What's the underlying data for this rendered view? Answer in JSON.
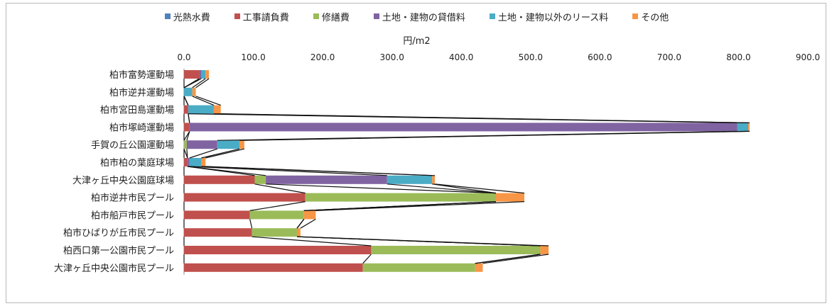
{
  "chart_data": {
    "type": "bar",
    "orientation": "horizontal",
    "stacked": true,
    "unit": "円/m2",
    "xlim": [
      0,
      900
    ],
    "xticks": [
      "0.0",
      "100.0",
      "200.0",
      "300.0",
      "400.0",
      "500.0",
      "600.0",
      "700.0",
      "800.0",
      "900.0"
    ],
    "categories": [
      "柏市富勢運動場",
      "柏市逆井運動場",
      "柏市宮田島運動場",
      "柏市塚崎運動場",
      "手賀の丘公園運動場",
      "柏市柏の葉庭球場",
      "大津ヶ丘中央公園庭球場",
      "柏市逆井市民プール",
      "柏市船戸市民プール",
      "柏市ひばりが丘市民プール",
      "柏西口第一公園市民プール",
      "大津ヶ丘中央公園市民プール"
    ],
    "series": [
      {
        "name": "光熱水費",
        "color": "#4f81bd",
        "values": [
          0,
          0,
          0,
          0,
          0,
          0,
          0,
          0,
          0,
          0,
          0,
          0
        ]
      },
      {
        "name": "工事請負費",
        "color": "#c0504d",
        "values": [
          22,
          0,
          6,
          8,
          0,
          5,
          102,
          175,
          95,
          98,
          270,
          258
        ]
      },
      {
        "name": "修繕費",
        "color": "#9bbb59",
        "values": [
          0,
          0,
          0,
          0,
          4,
          0,
          16,
          275,
          78,
          65,
          244,
          162
        ]
      },
      {
        "name": "土地・建物の貸借料",
        "color": "#8064a2",
        "values": [
          3,
          0,
          0,
          790,
          44,
          3,
          175,
          0,
          0,
          0,
          0,
          0
        ]
      },
      {
        "name": "土地・建物以外のリース料",
        "color": "#4bacc6",
        "values": [
          6,
          12,
          37,
          16,
          32,
          17,
          65,
          0,
          0,
          0,
          0,
          0
        ]
      },
      {
        "name": "その他",
        "color": "#f79646",
        "values": [
          5,
          5,
          10,
          2,
          7,
          6,
          4,
          41,
          17,
          5,
          12,
          11
        ]
      }
    ]
  }
}
